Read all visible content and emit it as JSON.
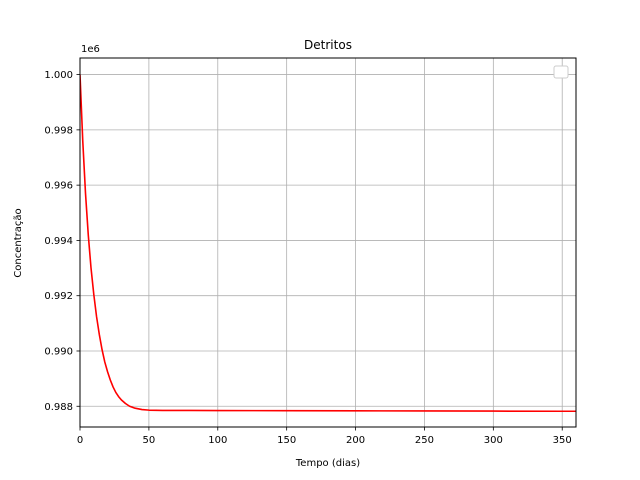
{
  "chart_data": {
    "type": "line",
    "title": "Detritos",
    "xlabel": "Tempo (dias)",
    "ylabel": "Concentração",
    "y_offset_text": "1e6",
    "xlim": [
      0,
      360
    ],
    "ylim": [
      987250,
      1000600
    ],
    "xticks": [
      0,
      50,
      100,
      150,
      200,
      250,
      300,
      350
    ],
    "yticks": [
      988000,
      990000,
      992000,
      994000,
      996000,
      998000,
      1000000
    ],
    "ytick_labels": [
      "0.988",
      "0.990",
      "0.992",
      "0.994",
      "0.996",
      "0.998",
      "1.000"
    ],
    "grid": true,
    "legend": {
      "placement": "top-right",
      "entries": []
    },
    "series": [
      {
        "color": "#ff0000",
        "x": [
          0,
          2,
          4,
          6,
          8,
          10,
          12,
          14,
          16,
          18,
          20,
          22,
          24,
          26,
          28,
          30,
          33,
          36,
          40,
          45,
          50,
          60,
          80,
          100,
          150,
          200,
          250,
          300,
          350,
          360
        ],
        "y": [
          1000000,
          997600,
          995700,
          994200,
          993000,
          992050,
          991250,
          990600,
          990050,
          989600,
          989250,
          988950,
          988700,
          988500,
          988350,
          988230,
          988100,
          988000,
          987930,
          987880,
          987860,
          987850,
          987850,
          987845,
          987840,
          987835,
          987830,
          987825,
          987820,
          987820
        ]
      }
    ]
  }
}
